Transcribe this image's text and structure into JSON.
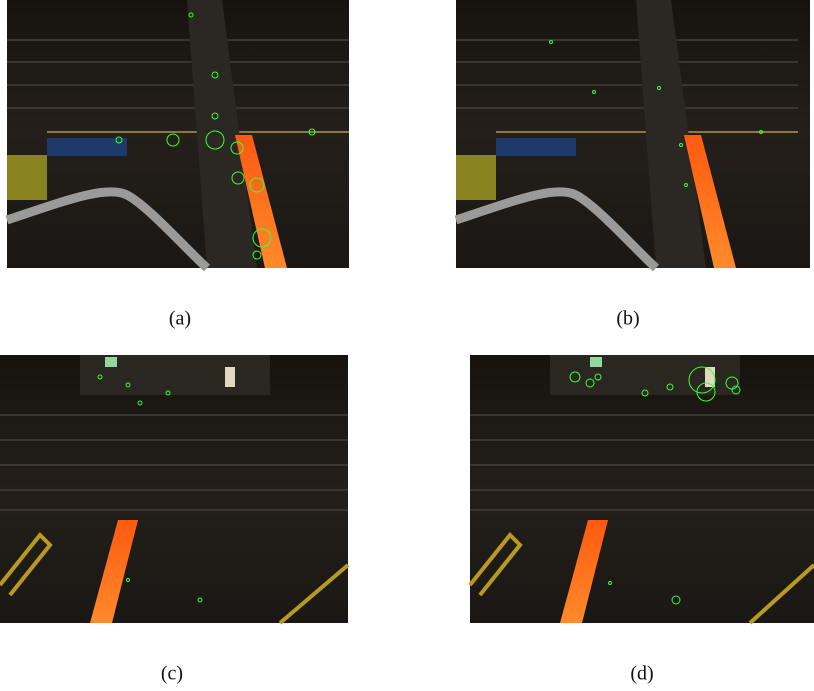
{
  "subfigures": [
    {
      "label": "(a)"
    },
    {
      "label": "(b)"
    },
    {
      "label": "(c)"
    },
    {
      "label": "(d)"
    }
  ]
}
